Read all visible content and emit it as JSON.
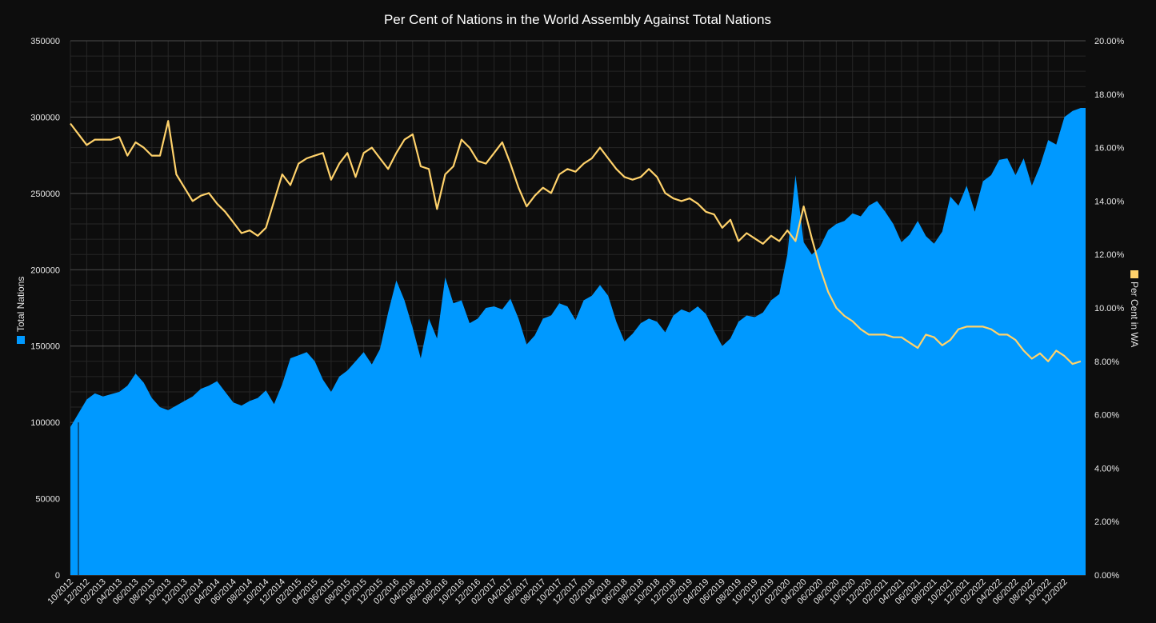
{
  "chart_data": {
    "type": "area",
    "title": "Per Cent of Nations in the World Assembly Against Total Nations",
    "y_left_label": "Total Nations",
    "y_right_label": "Per Cent in WA",
    "y_left_range": [
      0,
      350000
    ],
    "y_left_ticks": [
      "0",
      "50000",
      "100000",
      "150000",
      "200000",
      "250000",
      "300000",
      "350000"
    ],
    "y_right_range": [
      0,
      20
    ],
    "y_right_ticks": [
      "0.00%",
      "2.00%",
      "4.00%",
      "6.00%",
      "8.00%",
      "10.00%",
      "12.00%",
      "14.00%",
      "16.00%",
      "18.00%",
      "20.00%"
    ],
    "x_range": [
      "2012-10",
      "2023-02"
    ],
    "x_tick_labels": [
      "10/2012",
      "12/2012",
      "02/2013",
      "04/2013",
      "06/2013",
      "08/2013",
      "10/2013",
      "12/2013",
      "02/2014",
      "04/2014",
      "06/2014",
      "08/2014",
      "10/2014",
      "12/2014",
      "02/2015",
      "04/2015",
      "06/2015",
      "08/2015",
      "10/2015",
      "12/2015",
      "02/2016",
      "04/2016",
      "06/2016",
      "08/2016",
      "10/2016",
      "12/2016",
      "02/2017",
      "04/2017",
      "06/2017",
      "08/2017",
      "10/2017",
      "12/2017",
      "02/2018",
      "04/2018",
      "06/2018",
      "08/2018",
      "10/2018",
      "12/2018",
      "02/2019",
      "04/2019",
      "06/2019",
      "08/2019",
      "10/2019",
      "12/2019",
      "02/2020",
      "04/2020",
      "06/2020",
      "08/2020",
      "10/2020",
      "12/2020",
      "02/2021",
      "04/2021",
      "06/2021",
      "08/2021",
      "10/2021",
      "12/2021",
      "02/2022",
      "04/2022",
      "06/2022",
      "08/2022",
      "10/2022",
      "12/2022"
    ],
    "grid": true,
    "legend": "axis-titles",
    "series": [
      {
        "name": "Total Nations",
        "axis": "left",
        "chart": "area",
        "color": "#0099ff",
        "points": [
          [
            "2012-10",
            97000
          ],
          [
            "2012-12",
            115000
          ],
          [
            "2013-01",
            119000
          ],
          [
            "2013-02",
            117000
          ],
          [
            "2013-04",
            120000
          ],
          [
            "2013-05",
            124000
          ],
          [
            "2013-06",
            132000
          ],
          [
            "2013-07",
            126000
          ],
          [
            "2013-08",
            116000
          ],
          [
            "2013-09",
            110000
          ],
          [
            "2013-10",
            108000
          ],
          [
            "2013-11",
            111000
          ],
          [
            "2013-12",
            114000
          ],
          [
            "2014-01",
            117000
          ],
          [
            "2014-02",
            122000
          ],
          [
            "2014-03",
            124000
          ],
          [
            "2014-04",
            127000
          ],
          [
            "2014-05",
            120000
          ],
          [
            "2014-06",
            113000
          ],
          [
            "2014-07",
            111000
          ],
          [
            "2014-08",
            114000
          ],
          [
            "2014-09",
            116000
          ],
          [
            "2014-10",
            121000
          ],
          [
            "2014-11",
            112000
          ],
          [
            "2014-12",
            125000
          ],
          [
            "2015-01",
            142000
          ],
          [
            "2015-02",
            144000
          ],
          [
            "2015-03",
            146000
          ],
          [
            "2015-04",
            140000
          ],
          [
            "2015-05",
            128000
          ],
          [
            "2015-06",
            120000
          ],
          [
            "2015-07",
            130000
          ],
          [
            "2015-08",
            134000
          ],
          [
            "2015-09",
            140000
          ],
          [
            "2015-10",
            146000
          ],
          [
            "2015-11",
            138000
          ],
          [
            "2015-12",
            148000
          ],
          [
            "2016-01",
            172000
          ],
          [
            "2016-02",
            193000
          ],
          [
            "2016-03",
            180000
          ],
          [
            "2016-04",
            162000
          ],
          [
            "2016-05",
            142000
          ],
          [
            "2016-06",
            168000
          ],
          [
            "2016-07",
            155000
          ],
          [
            "2016-08",
            195000
          ],
          [
            "2016-09",
            178000
          ],
          [
            "2016-10",
            180000
          ],
          [
            "2016-11",
            165000
          ],
          [
            "2016-12",
            168000
          ],
          [
            "2017-01",
            175000
          ],
          [
            "2017-02",
            176000
          ],
          [
            "2017-03",
            174000
          ],
          [
            "2017-04",
            181000
          ],
          [
            "2017-05",
            168000
          ],
          [
            "2017-06",
            151000
          ],
          [
            "2017-07",
            157000
          ],
          [
            "2017-08",
            168000
          ],
          [
            "2017-09",
            170000
          ],
          [
            "2017-10",
            178000
          ],
          [
            "2017-11",
            176000
          ],
          [
            "2017-12",
            167000
          ],
          [
            "2018-01",
            180000
          ],
          [
            "2018-02",
            183000
          ],
          [
            "2018-03",
            190000
          ],
          [
            "2018-04",
            183000
          ],
          [
            "2018-05",
            166000
          ],
          [
            "2018-06",
            153000
          ],
          [
            "2018-07",
            158000
          ],
          [
            "2018-08",
            165000
          ],
          [
            "2018-09",
            168000
          ],
          [
            "2018-10",
            166000
          ],
          [
            "2018-11",
            159000
          ],
          [
            "2018-12",
            170000
          ],
          [
            "2019-01",
            174000
          ],
          [
            "2019-02",
            172000
          ],
          [
            "2019-03",
            176000
          ],
          [
            "2019-04",
            171000
          ],
          [
            "2019-05",
            160000
          ],
          [
            "2019-06",
            150000
          ],
          [
            "2019-07",
            155000
          ],
          [
            "2019-08",
            166000
          ],
          [
            "2019-09",
            170000
          ],
          [
            "2019-10",
            169000
          ],
          [
            "2019-11",
            172000
          ],
          [
            "2019-12",
            180000
          ],
          [
            "2020-01",
            184000
          ],
          [
            "2020-02",
            210000
          ],
          [
            "2020-03",
            262000
          ],
          [
            "2020-04",
            218000
          ],
          [
            "2020-05",
            210000
          ],
          [
            "2020-06",
            215000
          ],
          [
            "2020-07",
            226000
          ],
          [
            "2020-08",
            230000
          ],
          [
            "2020-09",
            232000
          ],
          [
            "2020-10",
            237000
          ],
          [
            "2020-11",
            235000
          ],
          [
            "2020-12",
            242000
          ],
          [
            "2021-01",
            245000
          ],
          [
            "2021-02",
            238000
          ],
          [
            "2021-03",
            230000
          ],
          [
            "2021-04",
            218000
          ],
          [
            "2021-05",
            223000
          ],
          [
            "2021-06",
            232000
          ],
          [
            "2021-07",
            222000
          ],
          [
            "2021-08",
            217000
          ],
          [
            "2021-09",
            225000
          ],
          [
            "2021-10",
            248000
          ],
          [
            "2021-11",
            242000
          ],
          [
            "2021-12",
            255000
          ],
          [
            "2022-01",
            238000
          ],
          [
            "2022-02",
            258000
          ],
          [
            "2022-03",
            262000
          ],
          [
            "2022-04",
            272000
          ],
          [
            "2022-05",
            273000
          ],
          [
            "2022-06",
            262000
          ],
          [
            "2022-07",
            273000
          ],
          [
            "2022-08",
            255000
          ],
          [
            "2022-09",
            268000
          ],
          [
            "2022-10",
            285000
          ],
          [
            "2022-11",
            282000
          ],
          [
            "2022-12",
            300000
          ],
          [
            "2023-01",
            304000
          ],
          [
            "2023-02",
            306000
          ]
        ]
      },
      {
        "name": "Per Cent in WA",
        "axis": "right",
        "chart": "line",
        "color": "#ffd26b",
        "points": [
          [
            "2012-10",
            16.9
          ],
          [
            "2012-11",
            16.5
          ],
          [
            "2012-12",
            16.1
          ],
          [
            "2013-01",
            16.3
          ],
          [
            "2013-02",
            16.3
          ],
          [
            "2013-03",
            16.3
          ],
          [
            "2013-04",
            16.4
          ],
          [
            "2013-05",
            15.7
          ],
          [
            "2013-06",
            16.2
          ],
          [
            "2013-07",
            16.0
          ],
          [
            "2013-08",
            15.7
          ],
          [
            "2013-09",
            15.7
          ],
          [
            "2013-10",
            17.0
          ],
          [
            "2013-11",
            15.0
          ],
          [
            "2013-12",
            14.5
          ],
          [
            "2014-01",
            14.0
          ],
          [
            "2014-02",
            14.2
          ],
          [
            "2014-03",
            14.3
          ],
          [
            "2014-04",
            13.9
          ],
          [
            "2014-05",
            13.6
          ],
          [
            "2014-06",
            13.2
          ],
          [
            "2014-07",
            12.8
          ],
          [
            "2014-08",
            12.9
          ],
          [
            "2014-09",
            12.7
          ],
          [
            "2014-10",
            13.0
          ],
          [
            "2014-11",
            14.0
          ],
          [
            "2014-12",
            15.0
          ],
          [
            "2015-01",
            14.6
          ],
          [
            "2015-02",
            15.4
          ],
          [
            "2015-03",
            15.6
          ],
          [
            "2015-04",
            15.7
          ],
          [
            "2015-05",
            15.8
          ],
          [
            "2015-06",
            14.8
          ],
          [
            "2015-07",
            15.4
          ],
          [
            "2015-08",
            15.8
          ],
          [
            "2015-09",
            14.9
          ],
          [
            "2015-10",
            15.8
          ],
          [
            "2015-11",
            16.0
          ],
          [
            "2015-12",
            15.6
          ],
          [
            "2016-01",
            15.2
          ],
          [
            "2016-02",
            15.8
          ],
          [
            "2016-03",
            16.3
          ],
          [
            "2016-04",
            16.5
          ],
          [
            "2016-05",
            15.3
          ],
          [
            "2016-06",
            15.2
          ],
          [
            "2016-07",
            13.7
          ],
          [
            "2016-08",
            15.0
          ],
          [
            "2016-09",
            15.3
          ],
          [
            "2016-10",
            16.3
          ],
          [
            "2016-11",
            16.0
          ],
          [
            "2016-12",
            15.5
          ],
          [
            "2017-01",
            15.4
          ],
          [
            "2017-02",
            15.8
          ],
          [
            "2017-03",
            16.2
          ],
          [
            "2017-04",
            15.4
          ],
          [
            "2017-05",
            14.5
          ],
          [
            "2017-06",
            13.8
          ],
          [
            "2017-07",
            14.2
          ],
          [
            "2017-08",
            14.5
          ],
          [
            "2017-09",
            14.3
          ],
          [
            "2017-10",
            15.0
          ],
          [
            "2017-11",
            15.2
          ],
          [
            "2017-12",
            15.1
          ],
          [
            "2018-01",
            15.4
          ],
          [
            "2018-02",
            15.6
          ],
          [
            "2018-03",
            16.0
          ],
          [
            "2018-04",
            15.6
          ],
          [
            "2018-05",
            15.2
          ],
          [
            "2018-06",
            14.9
          ],
          [
            "2018-07",
            14.8
          ],
          [
            "2018-08",
            14.9
          ],
          [
            "2018-09",
            15.2
          ],
          [
            "2018-10",
            14.9
          ],
          [
            "2018-11",
            14.3
          ],
          [
            "2018-12",
            14.1
          ],
          [
            "2019-01",
            14.0
          ],
          [
            "2019-02",
            14.1
          ],
          [
            "2019-03",
            13.9
          ],
          [
            "2019-04",
            13.6
          ],
          [
            "2019-05",
            13.5
          ],
          [
            "2019-06",
            13.0
          ],
          [
            "2019-07",
            13.3
          ],
          [
            "2019-08",
            12.5
          ],
          [
            "2019-09",
            12.8
          ],
          [
            "2019-10",
            12.6
          ],
          [
            "2019-11",
            12.4
          ],
          [
            "2019-12",
            12.7
          ],
          [
            "2020-01",
            12.5
          ],
          [
            "2020-02",
            12.9
          ],
          [
            "2020-03",
            12.5
          ],
          [
            "2020-04",
            13.8
          ],
          [
            "2020-05",
            12.6
          ],
          [
            "2020-06",
            11.5
          ],
          [
            "2020-07",
            10.6
          ],
          [
            "2020-08",
            10.0
          ],
          [
            "2020-09",
            9.7
          ],
          [
            "2020-10",
            9.5
          ],
          [
            "2020-11",
            9.2
          ],
          [
            "2020-12",
            9.0
          ],
          [
            "2021-01",
            9.0
          ],
          [
            "2021-02",
            9.0
          ],
          [
            "2021-03",
            8.9
          ],
          [
            "2021-04",
            8.9
          ],
          [
            "2021-05",
            8.7
          ],
          [
            "2021-06",
            8.5
          ],
          [
            "2021-07",
            9.0
          ],
          [
            "2021-08",
            8.9
          ],
          [
            "2021-09",
            8.6
          ],
          [
            "2021-10",
            8.8
          ],
          [
            "2021-11",
            9.2
          ],
          [
            "2021-12",
            9.3
          ],
          [
            "2022-01",
            9.3
          ],
          [
            "2022-02",
            9.3
          ],
          [
            "2022-03",
            9.2
          ],
          [
            "2022-04",
            9.0
          ],
          [
            "2022-05",
            9.0
          ],
          [
            "2022-06",
            8.8
          ],
          [
            "2022-07",
            8.4
          ],
          [
            "2022-08",
            8.1
          ],
          [
            "2022-09",
            8.3
          ],
          [
            "2022-10",
            8.0
          ],
          [
            "2022-11",
            8.4
          ],
          [
            "2022-12",
            8.2
          ],
          [
            "2023-01",
            7.9
          ],
          [
            "2023-02",
            8.0
          ]
        ]
      }
    ]
  }
}
